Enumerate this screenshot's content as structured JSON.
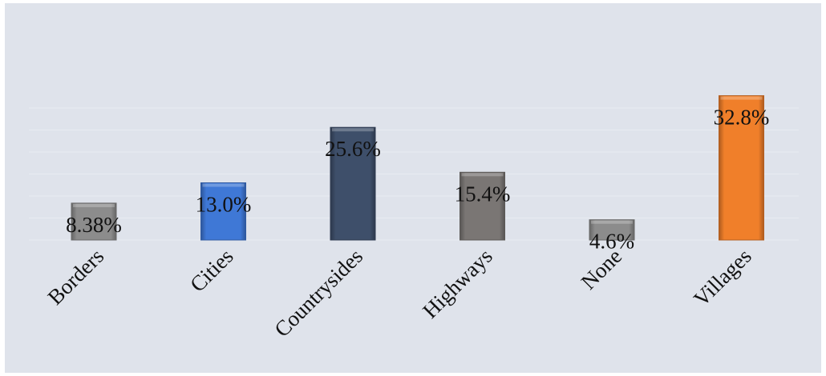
{
  "chart_data": {
    "type": "bar",
    "title": "",
    "xlabel": "",
    "ylabel": "",
    "categories": [
      "Borders",
      "Cities",
      "Countrysides",
      "Highways",
      "None",
      "Villages"
    ],
    "values": [
      8.38,
      13.0,
      25.6,
      15.4,
      4.6,
      32.8
    ],
    "value_labels": [
      "8.38%",
      "13.0%",
      "25.6%",
      "15.4%",
      "4.6%",
      "32.8%"
    ],
    "ylim": [
      0,
      35
    ],
    "grid": true,
    "legend": "none",
    "colors": [
      "#8c8c8c",
      "#3f78d6",
      "#3e4f6a",
      "#7a7674",
      "#8c8c8c",
      "#f07f2a"
    ],
    "background": "#dfe3eb",
    "gridline_color": "#e9ecf1"
  }
}
